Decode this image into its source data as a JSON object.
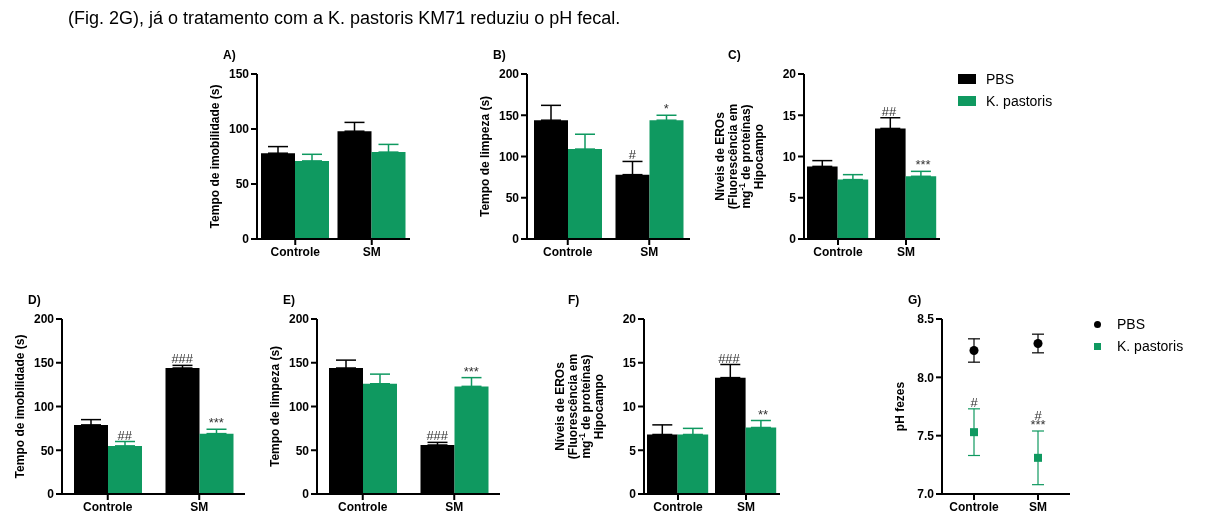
{
  "chart_data": [
    {
      "type": "bar",
      "title": "A)",
      "ylabel": "Tempo de imobilidade (s)",
      "categories": [
        "Controle",
        "SM"
      ],
      "ylim": [
        0,
        150
      ],
      "yticks": [
        0,
        50,
        100,
        150
      ],
      "annotations": [
        "(Fig. 2G), já o tratamento com a K. pastoris KM71 reduziu o pH fecal."
      ],
      "series": [
        {
          "color": "#000000",
          "values": [
            78,
            98
          ],
          "errors": [
            [
              78,
              84
            ],
            [
              98,
              106
            ]
          ]
        },
        {
          "color": "#0f9960",
          "values": [
            71,
            79
          ],
          "errors": [
            [
              71,
              77
            ],
            [
              79,
              86
            ]
          ]
        }
      ]
    },
    {
      "type": "bar",
      "title": "B)",
      "ylabel": "Tempo de limpeza (s)",
      "categories": [
        "Controle",
        "SM"
      ],
      "ylim": [
        0,
        200
      ],
      "yticks": [
        0,
        50,
        100,
        150,
        200
      ],
      "annotations": [
        {
          "text": "#",
          "x": "SM",
          "y": 78
        },
        {
          "text": "*",
          "x": "SM",
          "y": 144
        }
      ],
      "series": [
        {
          "color": "#000000",
          "values": [
            144,
            78
          ],
          "errors": [
            [
              144,
              162
            ],
            [
              78,
              94
            ]
          ]
        },
        {
          "color": "#0f9960",
          "values": [
            109,
            144
          ],
          "errors": [
            [
              109,
              127
            ],
            [
              144,
              150
            ]
          ]
        }
      ]
    },
    {
      "type": "bar",
      "title": "C)",
      "ylabel": "Níveis de EROs\n(Fluorescência em\nmg$^{-1}$ de proteínas)\nHipocampo",
      "categories": [
        "Controle",
        "SM"
      ],
      "ylim": [
        0,
        20
      ],
      "yticks": [
        0,
        5,
        10,
        15,
        20
      ],
      "legend": "right",
      "annotations": [
        {
          "text": "##",
          "x": "SM",
          "y": 13.4
        },
        {
          "text": "***",
          "x": "SM",
          "y": 7.6
        }
      ],
      "series": [
        {
          "name": "PBS",
          "color": "#000000",
          "values": [
            8.8,
            13.4
          ],
          "errors": [
            [
              8.8,
              9.5
            ],
            [
              13.4,
              14.7
            ]
          ]
        },
        {
          "name": "K. pastoris",
          "color": "#0f9960",
          "values": [
            7.2,
            7.6
          ],
          "errors": [
            [
              7.2,
              7.8
            ],
            [
              7.6,
              8.2
            ]
          ]
        }
      ]
    },
    {
      "type": "bar",
      "title": "D)",
      "ylabel": "Tempo de imobilidade (s)",
      "categories": [
        "Controle",
        "SM"
      ],
      "ylim": [
        0,
        200
      ],
      "yticks": [
        0,
        50,
        100,
        150,
        200
      ],
      "annotations": [
        {
          "text": "##",
          "x": "Controle",
          "y": 55
        },
        {
          "text": "###",
          "x": "SM",
          "y": 144
        },
        {
          "text": "***",
          "x": "SM",
          "y": 69
        }
      ],
      "series": [
        {
          "color": "#000000",
          "values": [
            79,
            144
          ],
          "errors": [
            [
              79,
              85
            ],
            [
              144,
              147
            ]
          ]
        },
        {
          "color": "#0f9960",
          "values": [
            55,
            69
          ],
          "errors": [
            [
              55,
              60
            ],
            [
              69,
              74
            ]
          ]
        }
      ]
    },
    {
      "type": "bar",
      "title": "E)",
      "ylabel": "Tempo de limpeza (s)",
      "categories": [
        "Controle",
        "SM"
      ],
      "ylim": [
        0,
        200
      ],
      "yticks": [
        0,
        50,
        100,
        150,
        200
      ],
      "annotations": [
        {
          "text": "###",
          "x": "SM",
          "y": 56
        },
        {
          "text": "***",
          "x": "SM",
          "y": 123
        }
      ],
      "series": [
        {
          "color": "#000000",
          "values": [
            144,
            56
          ],
          "errors": [
            [
              144,
              153
            ],
            [
              56,
              59
            ]
          ]
        },
        {
          "color": "#0f9960",
          "values": [
            126,
            123
          ],
          "errors": [
            [
              126,
              137
            ],
            [
              123,
              133
            ]
          ]
        }
      ]
    },
    {
      "type": "bar",
      "title": "F)",
      "ylabel": "Níveis de EROs\n(Fluorescência em\nmg$^{-1}$ de proteínas)\nHipocampo",
      "categories": [
        "Controle",
        "SM"
      ],
      "ylim": [
        0,
        20
      ],
      "yticks": [
        0,
        5,
        10,
        15,
        20
      ],
      "annotations": [
        {
          "text": "###",
          "x": "SM",
          "y": 13.3
        },
        {
          "text": "**",
          "x": "SM",
          "y": 7.6
        }
      ],
      "series": [
        {
          "color": "#000000",
          "values": [
            6.8,
            13.3
          ],
          "errors": [
            [
              6.8,
              7.9
            ],
            [
              13.3,
              14.8
            ]
          ]
        },
        {
          "color": "#0f9960",
          "values": [
            6.8,
            7.6
          ],
          "errors": [
            [
              6.8,
              7.5
            ],
            [
              7.6,
              8.4
            ]
          ]
        }
      ]
    },
    {
      "type": "scatter",
      "title": "G)",
      "ylabel": "pH fezes",
      "categories": [
        "Controle",
        "SM"
      ],
      "ylim": [
        7,
        8.5
      ],
      "yticks": [
        {
          "value": 7,
          "label": "7.0"
        },
        {
          "value": 7.5,
          "label": "7.5"
        },
        {
          "value": 8,
          "label": "8.0"
        },
        {
          "value": 8.5,
          "label": "8.5"
        }
      ],
      "legend": "right",
      "annotations": [
        {
          "text": "#",
          "x": "Controle",
          "y": 7.53
        },
        {
          "text": "#",
          "x": "SM",
          "y": 7.31
        },
        {
          "text": "***",
          "x": "SM",
          "y": 7.31
        }
      ],
      "series": [
        {
          "name": "PBS",
          "color": "#000000",
          "marker": "circle",
          "values": [
            8.23,
            8.29
          ],
          "errors": [
            0.1,
            0.08
          ]
        },
        {
          "name": "K. pastoris",
          "color": "#0f9960",
          "marker": "square",
          "values": [
            7.53,
            7.31
          ],
          "errors": [
            0.2,
            0.23
          ]
        }
      ]
    }
  ]
}
